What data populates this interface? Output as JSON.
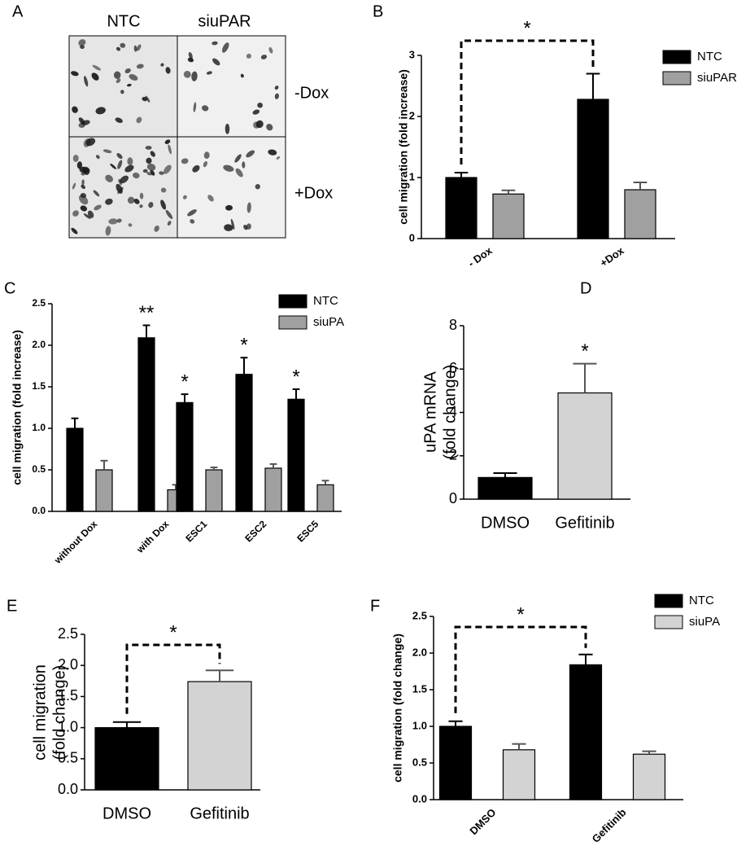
{
  "image_panel": {
    "panel": "A",
    "columns": [
      "NTC",
      "siuPAR"
    ],
    "rows": [
      "-Dox",
      "+Dox"
    ]
  },
  "chart_data": [
    {
      "type": "bar",
      "panel": "B",
      "y_label": "cell migration (fold increase)",
      "categories": [
        "- Dox",
        "+Dox"
      ],
      "series": [
        {
          "name": "NTC",
          "color": "#000000",
          "values": [
            1.0,
            2.28
          ],
          "errors": [
            0.08,
            0.42
          ]
        },
        {
          "name": "siuPAR",
          "color": "#a0a0a0",
          "values": [
            0.73,
            0.8
          ],
          "errors": [
            0.06,
            0.12
          ]
        }
      ],
      "ylim": [
        0,
        3
      ],
      "yticks": [
        0,
        1,
        2,
        3
      ],
      "legend": "upper right",
      "bracket": "*"
    },
    {
      "type": "bar",
      "panel": "C",
      "y_label": "cell migration (fold increase)",
      "categories": [
        "without Dox",
        "with Dox",
        "ESC1",
        "ESC2",
        "ESC5"
      ],
      "series": [
        {
          "name": "NTC",
          "color": "#000000",
          "values": [
            1.0,
            2.09,
            1.31,
            1.65,
            1.35
          ],
          "errors": [
            0.12,
            0.15,
            0.1,
            0.2,
            0.12
          ]
        },
        {
          "name": "siuPA",
          "color": "#a0a0a0",
          "values": [
            0.5,
            0.26,
            0.5,
            0.52,
            0.32
          ],
          "errors": [
            0.11,
            0.06,
            0.03,
            0.05,
            0.05
          ]
        }
      ],
      "annotations": [
        null,
        "**",
        "*",
        "*",
        "*"
      ],
      "ylim": [
        0,
        2.5
      ],
      "yticks": [
        {
          "value": 0,
          "label": "0.0"
        },
        {
          "value": 0.5,
          "label": "0.5"
        },
        {
          "value": 1,
          "label": "1.0"
        },
        {
          "value": 1.5,
          "label": "1.5"
        },
        {
          "value": 2,
          "label": "2.0"
        },
        {
          "value": 2.5,
          "label": "2.5"
        }
      ],
      "legend": "upper right"
    },
    {
      "type": "bar",
      "panel": "D",
      "y_label": [
        "uPA mRNA",
        "(fold change)"
      ],
      "categories": [
        "DMSO",
        "Gefitinib"
      ],
      "series": [
        {
          "colors": [
            "#000000",
            "#d3d3d3"
          ],
          "values": [
            1.0,
            4.9
          ],
          "errors": [
            0.2,
            1.35
          ]
        }
      ],
      "annotations": [
        null,
        "*"
      ],
      "ylim": [
        0,
        8
      ],
      "yticks": [
        0,
        2,
        4,
        6,
        8
      ]
    },
    {
      "type": "bar",
      "panel": "E",
      "y_label": [
        "cell migration",
        "(fold change)"
      ],
      "categories": [
        "DMSO",
        "Gefitinib"
      ],
      "series": [
        {
          "colors": [
            "#000000",
            "#d3d3d3"
          ],
          "values": [
            1.0,
            1.74
          ],
          "errors": [
            0.09,
            0.18
          ]
        }
      ],
      "ylim": [
        0,
        2.5
      ],
      "yticks": [
        {
          "value": 0,
          "label": "0.0"
        },
        {
          "value": 0.5,
          "label": "0.5"
        },
        {
          "value": 1,
          "label": "1.0"
        },
        {
          "value": 1.5,
          "label": "1.5"
        },
        {
          "value": 2,
          "label": "2.0"
        },
        {
          "value": 2.5,
          "label": "2.5"
        }
      ],
      "bracket": "*"
    },
    {
      "type": "bar",
      "panel": "F",
      "y_label": "cell migration (fold change)",
      "categories": [
        "DMSO",
        "Gefitinib"
      ],
      "series": [
        {
          "name": "NTC",
          "color": "#000000",
          "values": [
            1.0,
            1.84
          ],
          "errors": [
            0.07,
            0.14
          ]
        },
        {
          "name": "siuPA",
          "color": "#d3d3d3",
          "values": [
            0.68,
            0.62
          ],
          "errors": [
            0.08,
            0.04
          ]
        }
      ],
      "ylim": [
        0,
        2.5
      ],
      "yticks": [
        {
          "value": 0,
          "label": "0.0"
        },
        {
          "value": 0.5,
          "label": "0.5"
        },
        {
          "value": 1,
          "label": "1.0"
        },
        {
          "value": 1.5,
          "label": "1.5"
        },
        {
          "value": 2,
          "label": "2.0"
        },
        {
          "value": 2.5,
          "label": "2.5"
        }
      ],
      "legend": "upper right",
      "bracket": "*"
    }
  ]
}
